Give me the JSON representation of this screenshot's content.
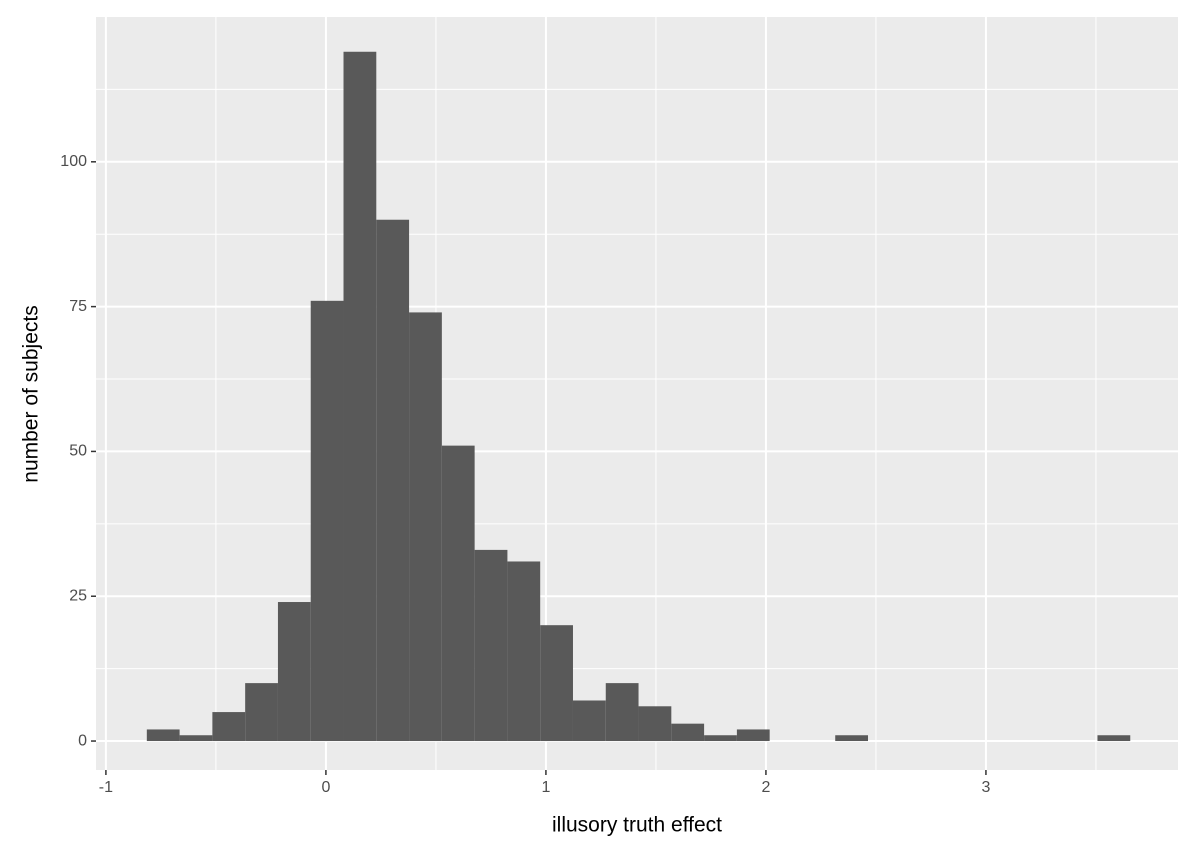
{
  "chart_data": {
    "type": "histogram",
    "x_label": "illusory truth effect",
    "y_label": "number of subjects",
    "bins": [
      -0.814,
      -0.665,
      -0.516,
      -0.367,
      -0.218,
      -0.069,
      0.08,
      0.229,
      0.378,
      0.527,
      0.676,
      0.825,
      0.974,
      1.123,
      1.272,
      1.421,
      1.57,
      1.719,
      1.868,
      2.017,
      2.166,
      2.315,
      2.464,
      2.613,
      2.762,
      2.911,
      3.06,
      3.209,
      3.358,
      3.507,
      3.656
    ],
    "values": [
      2,
      1,
      5,
      10,
      24,
      76,
      119,
      90,
      74,
      51,
      33,
      31,
      20,
      7,
      10,
      6,
      3,
      1,
      2,
      0,
      0,
      1,
      0,
      0,
      0,
      0,
      0,
      0,
      0,
      1
    ],
    "color": "#595959",
    "xlim": [
      -1.045,
      3.873
    ],
    "ylim": [
      -5,
      125
    ],
    "xticks": [
      -1,
      0,
      1,
      2,
      3
    ],
    "yticks": [
      0,
      25,
      50,
      75,
      100
    ],
    "grid": true,
    "minor_grid": true
  }
}
